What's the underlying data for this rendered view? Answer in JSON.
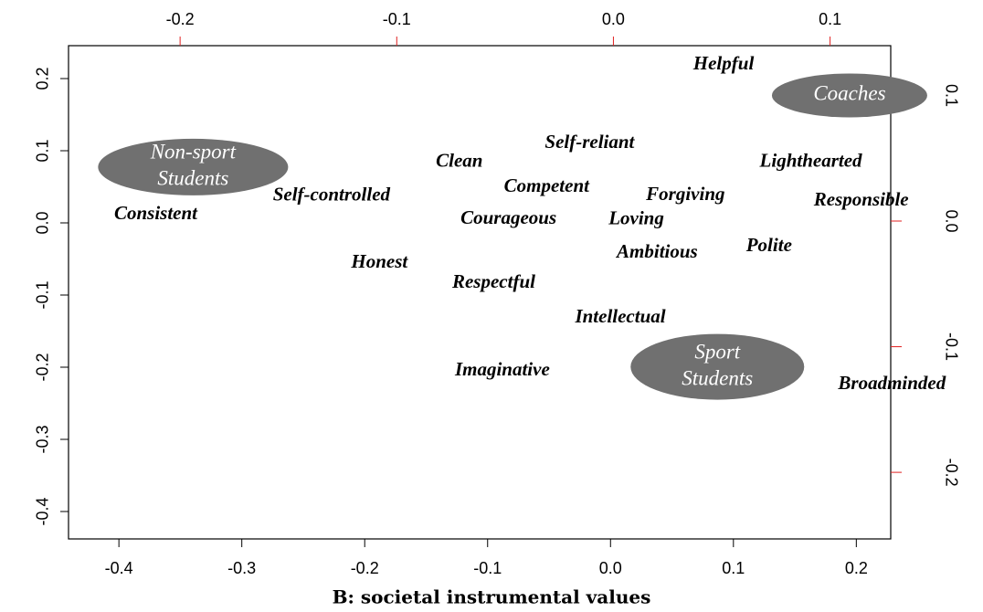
{
  "chart_data": {
    "type": "scatter",
    "caption": "B: societal instrumental values",
    "xlim": [
      -0.441,
      0.228
    ],
    "xticks": [
      -0.4,
      -0.3,
      -0.2,
      -0.1,
      {
        "value": 0,
        "label": "0.0"
      },
      0.1,
      0.2
    ],
    "ylim": [
      -0.438,
      0.2456
    ],
    "yticks": [
      0.2,
      0.1,
      {
        "value": 0,
        "label": "0.0"
      },
      -0.1,
      -0.2,
      -0.3,
      -0.4
    ],
    "x2lim": [
      -0.2515,
      0.128
    ],
    "x2ticks": [
      -0.2,
      -0.1,
      {
        "value": 0,
        "label": "0.0"
      },
      0.1
    ],
    "y2lim": [
      -0.253,
      0.1396
    ],
    "y2ticks": [
      0.1,
      {
        "value": 0,
        "label": "0.0"
      },
      -0.1,
      -0.2
    ],
    "secondary_tick_color": "#e02020",
    "series": [
      {
        "labels": [
          "Helpful",
          "Lighthearted",
          "Responsible",
          "Self-reliant",
          "Clean",
          "Competent",
          "Forgiving",
          "Self-controlled",
          "Consistent",
          "Courageous",
          "Loving",
          "Polite",
          "Ambitious",
          "Honest",
          "Respectful",
          "Intellectual",
          "Imaginative",
          "Broadminded"
        ],
        "x": [
          0.092,
          0.163,
          0.204,
          -0.017,
          -0.123,
          -0.052,
          0.061,
          -0.227,
          -0.37,
          -0.083,
          0.021,
          0.129,
          0.038,
          -0.188,
          -0.095,
          0.008,
          -0.088,
          0.229
        ],
        "values": [
          0.219,
          0.084,
          0.03,
          0.11,
          0.084,
          0.049,
          0.038,
          0.037,
          0.011,
          0.005,
          0.004,
          -0.033,
          -0.042,
          -0.056,
          -0.084,
          -0.132,
          -0.205,
          -0.224
        ],
        "color": "#000000"
      },
      {
        "labels": [
          [
            "Coaches"
          ],
          [
            "Non-sport",
            "Students"
          ],
          [
            "Sport",
            "Students"
          ]
        ],
        "x": [
          0.109,
          -0.194,
          0.048
        ],
        "values": [
          0.1,
          0.043,
          -0.116
        ],
        "axis": "y2",
        "color": "#707070"
      }
    ]
  }
}
